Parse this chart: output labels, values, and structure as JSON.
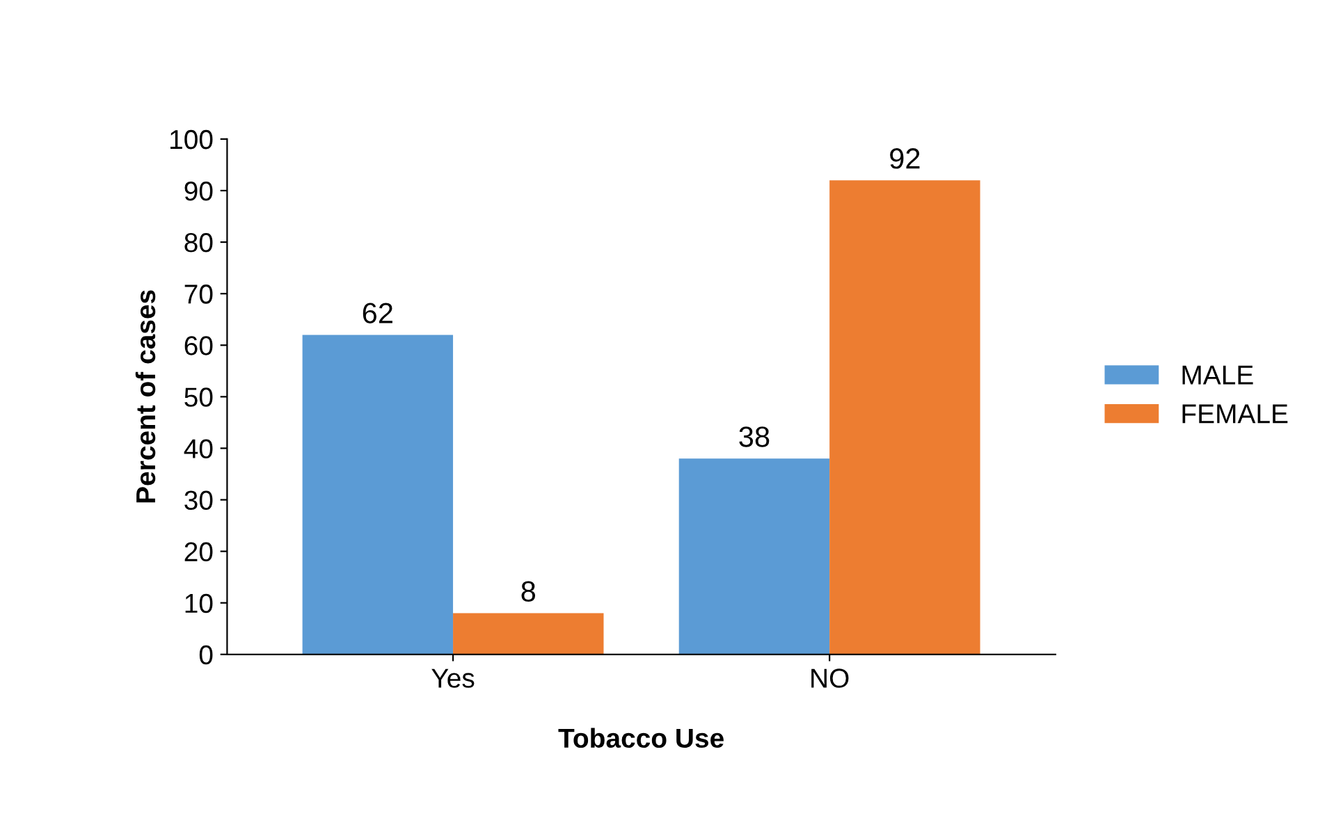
{
  "chart_data": {
    "type": "bar",
    "xlabel": "Tobacco Use",
    "ylabel": "Percent of cases",
    "categories": [
      "Yes",
      "NO"
    ],
    "series": [
      {
        "name": "MALE",
        "color": "#5b9bd5",
        "values": [
          62,
          38
        ]
      },
      {
        "name": "FEMALE",
        "color": "#ed7d31",
        "values": [
          8,
          92
        ]
      }
    ],
    "ylim": [
      0,
      100
    ],
    "yticks": [
      0,
      10,
      20,
      30,
      40,
      50,
      60,
      70,
      80,
      90,
      100
    ],
    "data_labels": true,
    "legend": "right",
    "grid": false
  }
}
